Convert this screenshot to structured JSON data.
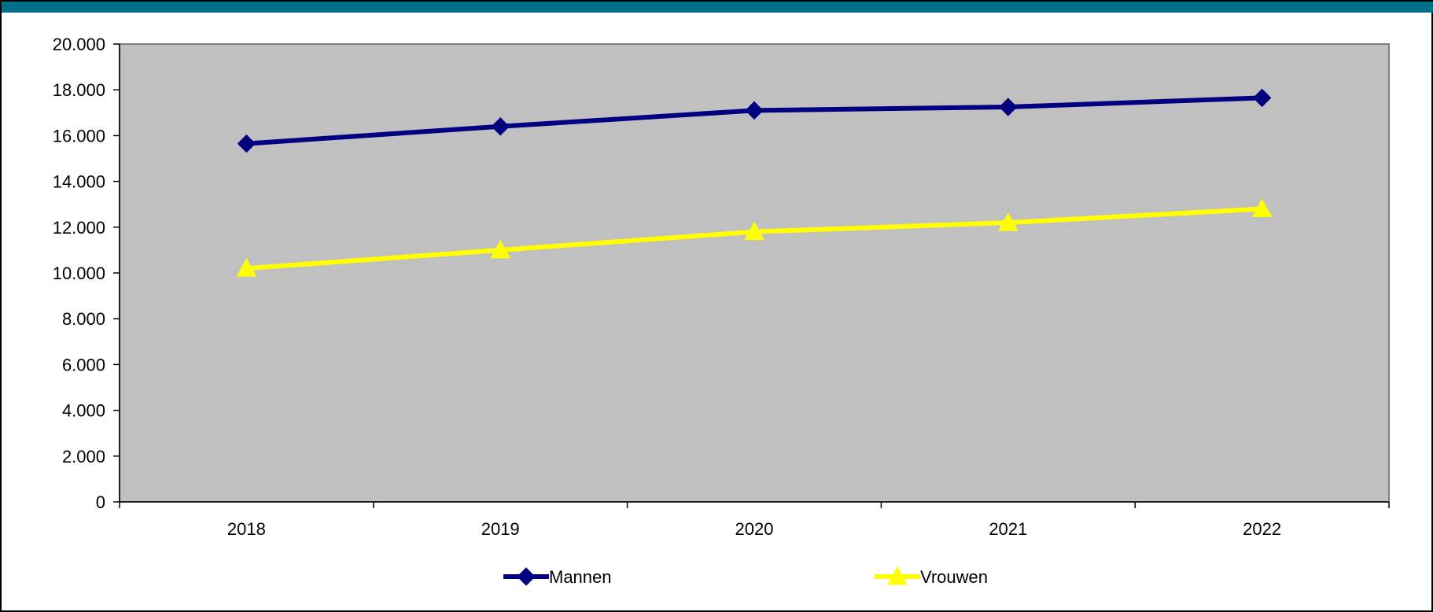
{
  "colors": {
    "topbar": "#006f8a",
    "plot_background": "#c0c0c0",
    "mannen": "#000080",
    "vrouwen": "#ffff00"
  },
  "chart_data": {
    "type": "line",
    "categories": [
      "2018",
      "2019",
      "2020",
      "2021",
      "2022"
    ],
    "series": [
      {
        "name": "Mannen",
        "values": [
          15650,
          16400,
          17100,
          17250,
          17650
        ],
        "color": "#000080",
        "marker": "diamond"
      },
      {
        "name": "Vrouwen",
        "values": [
          10200,
          11000,
          11800,
          12200,
          12800
        ],
        "color": "#ffff00",
        "marker": "triangle"
      }
    ],
    "y_ticks": [
      "0",
      "2.000",
      "4.000",
      "6.000",
      "8.000",
      "10.000",
      "12.000",
      "14.000",
      "16.000",
      "18.000",
      "20.000"
    ],
    "ylim": [
      0,
      20000
    ],
    "grid": false,
    "legend_position": "bottom"
  }
}
